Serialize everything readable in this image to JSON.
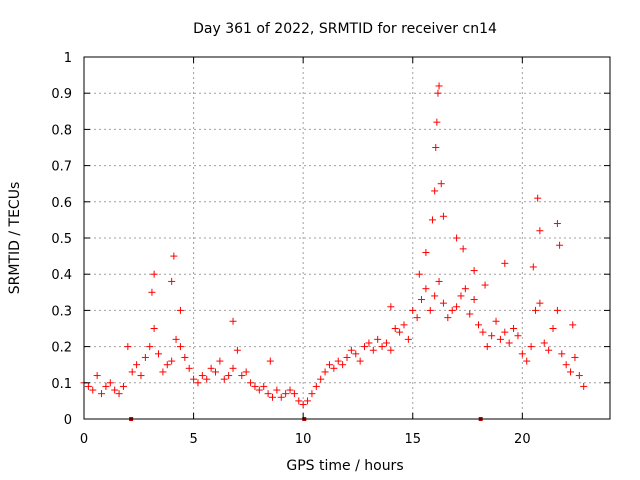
{
  "chart_data": {
    "type": "scatter",
    "title": "Day 361 of 2022, SRMTID for receiver cn14",
    "xlabel": "GPS time / hours",
    "ylabel": "SRMTID / TECUs",
    "xlim": [
      0,
      24
    ],
    "ylim": [
      0,
      1
    ],
    "xticks": [
      0,
      5,
      10,
      15,
      20
    ],
    "xtick_labels": [
      "0",
      "5",
      "10",
      "15",
      "20"
    ],
    "yticks": [
      0,
      0.1,
      0.2,
      0.3,
      0.4,
      0.5,
      0.6,
      0.7,
      0.8,
      0.9,
      1
    ],
    "ytick_labels": [
      "0",
      "0.1",
      "0.2",
      "0.3",
      "0.4",
      "0.5",
      "0.6",
      "0.7",
      "0.8",
      "0.9",
      "1"
    ],
    "grid": true,
    "marker": "plus",
    "color": "#ff0000",
    "data_gap_markers_x": [
      2.15,
      10.05,
      18.1
    ],
    "series": [
      {
        "name": "SRMTID",
        "x": [
          0.0,
          0.2,
          0.4,
          0.6,
          0.8,
          1.0,
          1.2,
          1.4,
          1.6,
          1.8,
          2.0,
          2.2,
          2.4,
          2.6,
          2.8,
          3.0,
          3.2,
          3.4,
          3.6,
          3.8,
          4.0,
          4.2,
          4.4,
          4.6,
          4.8,
          5.0,
          5.2,
          5.4,
          5.6,
          5.8,
          6.0,
          6.2,
          6.4,
          6.6,
          6.8,
          7.0,
          7.2,
          7.4,
          7.6,
          7.8,
          8.0,
          8.2,
          8.4,
          8.6,
          8.8,
          9.0,
          9.2,
          9.4,
          9.6,
          9.8,
          10.0,
          10.2,
          10.4,
          10.6,
          10.8,
          11.0,
          11.2,
          11.4,
          11.6,
          11.8,
          12.0,
          12.2,
          12.4,
          12.6,
          12.8,
          13.0,
          13.2,
          13.4,
          13.6,
          13.8,
          14.0,
          14.2,
          14.4,
          14.6,
          14.8,
          15.0,
          15.2,
          15.4,
          15.6,
          15.8,
          16.0,
          16.2,
          16.4,
          16.6,
          16.8,
          17.0,
          17.2,
          17.4,
          17.6,
          17.8,
          18.0,
          18.2,
          18.4,
          18.6,
          18.8,
          19.0,
          19.2,
          19.4,
          19.6,
          19.8,
          20.0,
          20.2,
          20.4,
          20.6,
          20.8,
          21.0,
          21.2,
          21.4,
          21.6,
          21.8,
          22.0,
          22.2,
          22.4,
          22.6,
          22.8,
          3.1,
          3.2,
          4.0,
          4.1,
          4.4,
          6.8,
          8.5,
          14.0,
          15.3,
          15.6,
          15.9,
          16.0,
          16.05,
          16.1,
          16.15,
          16.2,
          16.3,
          16.4,
          17.0,
          17.3,
          17.8,
          18.3,
          19.2,
          20.5,
          20.7,
          20.8,
          21.6,
          21.7,
          22.3
        ],
        "y": [
          0.1,
          0.09,
          0.08,
          0.12,
          0.07,
          0.09,
          0.1,
          0.08,
          0.07,
          0.09,
          0.2,
          0.13,
          0.15,
          0.12,
          0.17,
          0.2,
          0.25,
          0.18,
          0.13,
          0.15,
          0.16,
          0.22,
          0.2,
          0.17,
          0.14,
          0.11,
          0.1,
          0.12,
          0.11,
          0.14,
          0.13,
          0.16,
          0.11,
          0.12,
          0.14,
          0.19,
          0.12,
          0.13,
          0.1,
          0.09,
          0.08,
          0.09,
          0.07,
          0.06,
          0.08,
          0.06,
          0.07,
          0.08,
          0.07,
          0.05,
          0.04,
          0.05,
          0.07,
          0.09,
          0.11,
          0.13,
          0.15,
          0.14,
          0.16,
          0.15,
          0.17,
          0.19,
          0.18,
          0.16,
          0.2,
          0.21,
          0.19,
          0.22,
          0.2,
          0.21,
          0.19,
          0.25,
          0.24,
          0.26,
          0.22,
          0.3,
          0.28,
          0.33,
          0.36,
          0.3,
          0.34,
          0.38,
          0.32,
          0.28,
          0.3,
          0.31,
          0.34,
          0.36,
          0.29,
          0.33,
          0.26,
          0.24,
          0.2,
          0.23,
          0.27,
          0.22,
          0.24,
          0.21,
          0.25,
          0.23,
          0.18,
          0.16,
          0.2,
          0.3,
          0.32,
          0.21,
          0.19,
          0.25,
          0.3,
          0.18,
          0.15,
          0.13,
          0.17,
          0.12,
          0.09,
          0.35,
          0.4,
          0.38,
          0.45,
          0.3,
          0.27,
          0.16,
          0.31,
          0.4,
          0.46,
          0.55,
          0.63,
          0.75,
          0.82,
          0.9,
          0.92,
          0.65,
          0.56,
          0.5,
          0.47,
          0.41,
          0.37,
          0.43,
          0.42,
          0.61,
          0.52,
          0.54,
          0.48,
          0.26
        ]
      }
    ]
  }
}
